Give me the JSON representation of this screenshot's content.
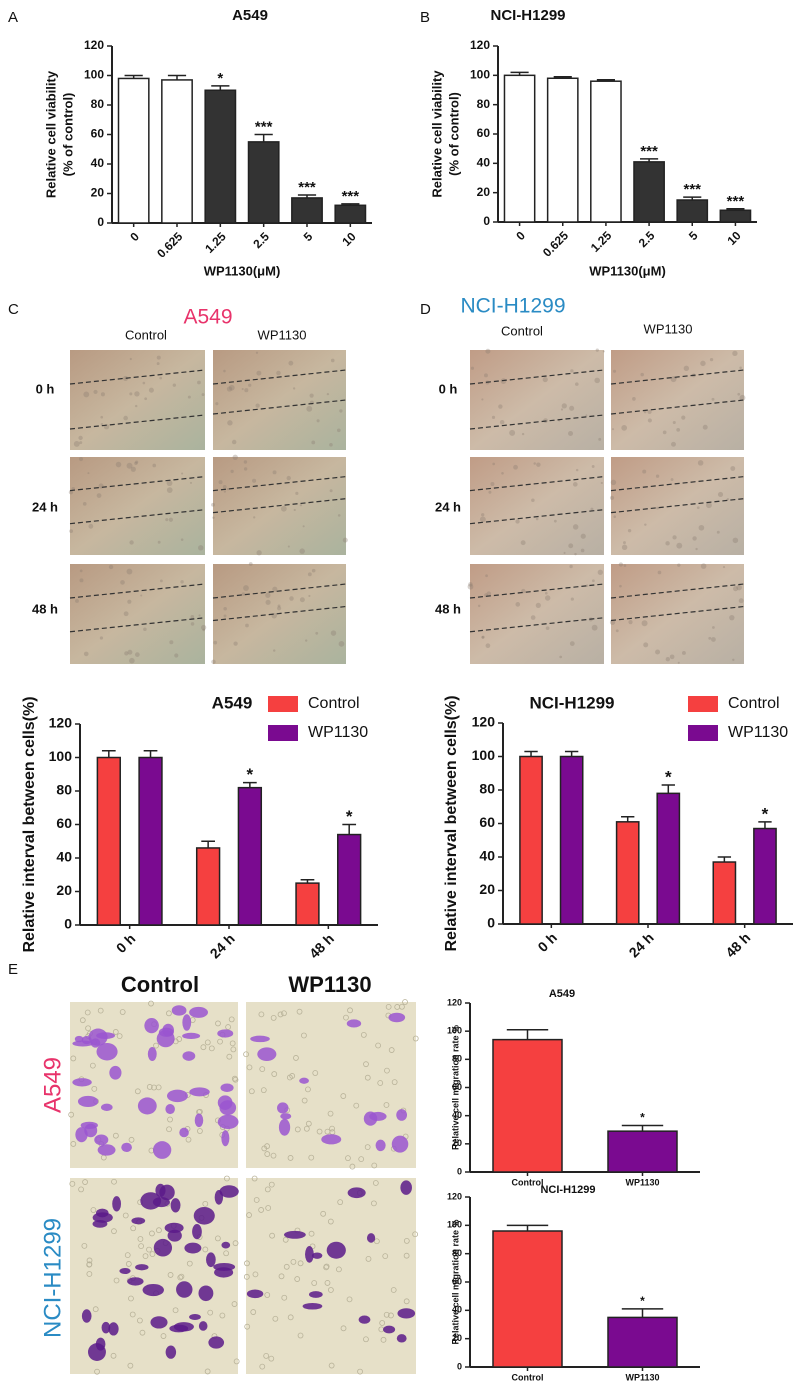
{
  "panel_labels": [
    "A",
    "B",
    "C",
    "D",
    "E"
  ],
  "wound_healing": [
    {
      "title": "A549",
      "columns": [
        "Control",
        "WP1130"
      ],
      "rows": [
        "0 h",
        "24 h",
        "48 h"
      ]
    },
    {
      "title": "NCI-H1299",
      "columns": [
        "Control",
        "WP1130"
      ],
      "rows": [
        "0 h",
        "24 h",
        "48 h"
      ]
    }
  ],
  "transwell": {
    "columns": [
      "Control",
      "WP1130"
    ],
    "rows": [
      "A549",
      "NCI-H1299"
    ]
  },
  "chart_data": [
    {
      "type": "bar",
      "title": "A549",
      "xlabel": "WP1130(μM)",
      "ylabel": [
        "Relative cell viability",
        "(% of control)"
      ],
      "categories": [
        "0",
        "0.625",
        "1.25",
        "2.5",
        "5",
        "10"
      ],
      "values": [
        98,
        97,
        90,
        55,
        17,
        12
      ],
      "errors": [
        2,
        3,
        3,
        5,
        2,
        1
      ],
      "annotations": [
        null,
        null,
        "*",
        "***",
        "***",
        "***"
      ],
      "colors": [
        "#ffffff",
        "#ffffff",
        "#333333",
        "#333333",
        "#333333",
        "#333333"
      ],
      "ylim": [
        0,
        120
      ],
      "yticks": [
        0,
        20,
        40,
        60,
        80,
        100,
        120
      ]
    },
    {
      "type": "bar",
      "title": "NCI-H1299",
      "xlabel": "WP1130(μM)",
      "ylabel": [
        "Relative cell viability",
        "(% of control)"
      ],
      "categories": [
        "0",
        "0.625",
        "1.25",
        "2.5",
        "5",
        "10"
      ],
      "values": [
        100,
        98,
        96,
        41,
        15,
        8
      ],
      "errors": [
        2,
        1,
        1,
        2,
        2,
        1
      ],
      "annotations": [
        null,
        null,
        null,
        "***",
        "***",
        "***"
      ],
      "colors": [
        "#ffffff",
        "#ffffff",
        "#ffffff",
        "#333333",
        "#333333",
        "#333333"
      ],
      "ylim": [
        0,
        120
      ],
      "yticks": [
        0,
        20,
        40,
        60,
        80,
        100,
        120
      ]
    },
    {
      "type": "grouped_bar",
      "title": "A549",
      "ylabel": "Relative interval between cells(%)",
      "categories": [
        "0 h",
        "24 h",
        "48 h"
      ],
      "series": [
        {
          "name": "Control",
          "color": "#f54040",
          "values": [
            100,
            46,
            25
          ],
          "errors": [
            4,
            4,
            2
          ],
          "annotations": [
            null,
            null,
            null
          ]
        },
        {
          "name": "WP1130",
          "color": "#7a0a90",
          "values": [
            100,
            82,
            54
          ],
          "errors": [
            4,
            3,
            6
          ],
          "annotations": [
            null,
            "*",
            "*"
          ]
        }
      ],
      "legend": "upper right",
      "ylim": [
        0,
        120
      ],
      "yticks": [
        0,
        20,
        40,
        60,
        80,
        100,
        120
      ]
    },
    {
      "type": "grouped_bar",
      "title": "NCI-H1299",
      "ylabel": "Relative interval between cells(%)",
      "categories": [
        "0 h",
        "24 h",
        "48 h"
      ],
      "series": [
        {
          "name": "Control",
          "color": "#f54040",
          "values": [
            100,
            61,
            37
          ],
          "errors": [
            3,
            3,
            3
          ],
          "annotations": [
            null,
            null,
            null
          ]
        },
        {
          "name": "WP1130",
          "color": "#7a0a90",
          "values": [
            100,
            78,
            57
          ],
          "errors": [
            3,
            5,
            4
          ],
          "annotations": [
            null,
            "*",
            "*"
          ]
        }
      ],
      "legend": "upper right",
      "ylim": [
        0,
        120
      ],
      "yticks": [
        0,
        20,
        40,
        60,
        80,
        100,
        120
      ]
    },
    {
      "type": "bar",
      "title": "A549",
      "ylabel": "Relative cell migration rate %",
      "categories": [
        "Control",
        "WP1130"
      ],
      "values": [
        94,
        29
      ],
      "errors": [
        7,
        4
      ],
      "annotations": [
        null,
        "*"
      ],
      "colors": [
        "#f54040",
        "#7a0a90"
      ],
      "ylim": [
        0,
        120
      ],
      "yticks": [
        0,
        20,
        40,
        60,
        80,
        100,
        120
      ]
    },
    {
      "type": "bar",
      "title": "NCI-H1299",
      "ylabel": "Relative cell migration rate %",
      "categories": [
        "Control",
        "WP1130"
      ],
      "values": [
        96,
        35
      ],
      "errors": [
        4,
        6
      ],
      "annotations": [
        null,
        "*"
      ],
      "colors": [
        "#f54040",
        "#7a0a90"
      ],
      "ylim": [
        0,
        120
      ],
      "yticks": [
        0,
        20,
        40,
        60,
        80,
        100,
        120
      ]
    }
  ]
}
